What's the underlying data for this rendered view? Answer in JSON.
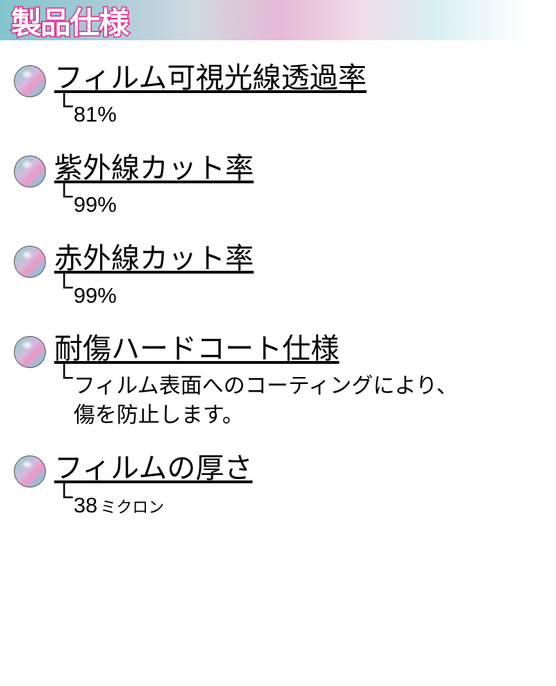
{
  "header": {
    "title": "製品仕様",
    "gradient_colors": [
      "#82c5ce",
      "#9fc9d4",
      "#d0d9e0",
      "#e5b9d6",
      "#f0dce8",
      "#d8eff2",
      "#ffffff"
    ],
    "title_color": "#ffffff",
    "title_stroke_color": "#e91e8c",
    "title_fontsize": 44
  },
  "bullet_style": {
    "diameter": 46,
    "border_color": "#555555",
    "gradient_colors": [
      "#d4e8ec",
      "#a5c8d2",
      "#d8b8e0",
      "#e89cc8",
      "#89c5d8",
      "#b8dfe8"
    ]
  },
  "specs": [
    {
      "title": "フィルム可視光線透過率",
      "value": "81%"
    },
    {
      "title": "紫外線カット率",
      "value": "99%"
    },
    {
      "title": "赤外線カット率",
      "value": "99%"
    },
    {
      "title": "耐傷ハードコート仕様",
      "value": "フィルム表面へのコーティングにより、\n傷を防止します。"
    },
    {
      "title": "フィルムの厚さ",
      "value": "38",
      "unit": "ミクロン"
    }
  ],
  "typography": {
    "title_fontsize": 41,
    "value_fontsize": 31,
    "unit_fontsize": 23,
    "text_color": "#000000"
  }
}
